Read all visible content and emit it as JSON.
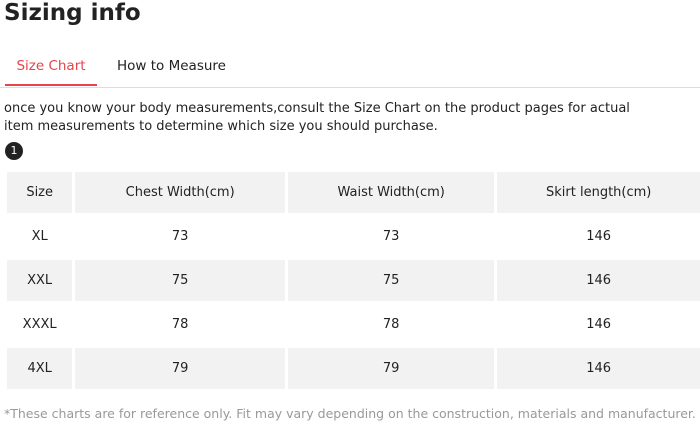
{
  "header": {
    "title": "Sizing info"
  },
  "tabs": {
    "items": [
      "Size Chart",
      "How to Measure"
    ],
    "active": 0
  },
  "intro": "once you know your body measurements,consult the Size Chart on the product pages for actual item measurements to determine which size you should purchase.",
  "badge": "1",
  "table": {
    "columns": [
      "Size",
      "Chest Width(cm)",
      "Waist Width(cm)",
      "Skirt length(cm)"
    ],
    "rows": [
      [
        "XL",
        73,
        73,
        146
      ],
      [
        "XXL",
        75,
        75,
        146
      ],
      [
        "XXXL",
        78,
        78,
        146
      ],
      [
        "4XL",
        79,
        79,
        146
      ]
    ]
  },
  "footnote": "*These charts are for reference only. Fit may vary depending on the construction, materials and manufacturer."
}
